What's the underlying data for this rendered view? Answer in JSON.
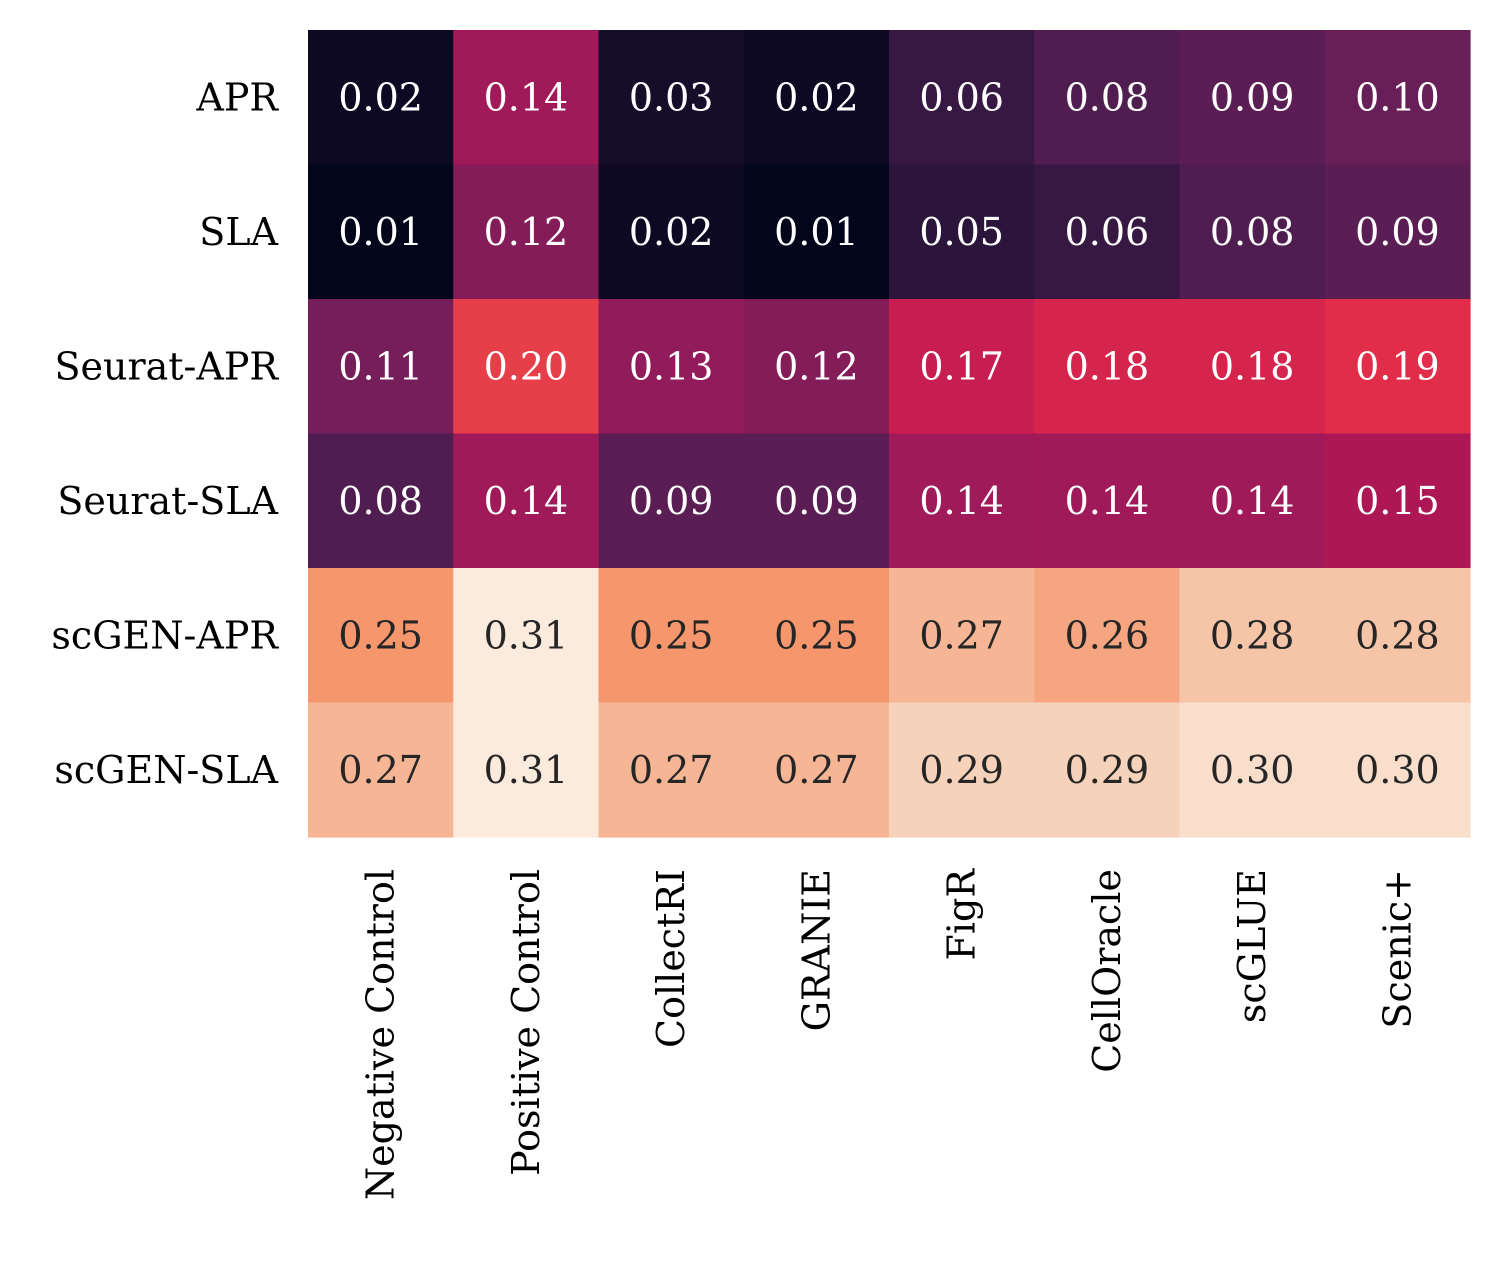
{
  "chart_data": {
    "type": "heatmap",
    "title": "",
    "xlabel": "",
    "ylabel": "",
    "rows": [
      "APR",
      "SLA",
      "Seurat-APR",
      "Seurat-SLA",
      "scGEN-APR",
      "scGEN-SLA"
    ],
    "columns": [
      "Negative Control",
      "Positive Control",
      "CollectRI",
      "GRANIE",
      "FigR",
      "CellOracle",
      "scGLUE",
      "Scenic+"
    ],
    "values": [
      [
        0.02,
        0.14,
        0.03,
        0.02,
        0.06,
        0.08,
        0.09,
        0.1
      ],
      [
        0.01,
        0.12,
        0.02,
        0.01,
        0.05,
        0.06,
        0.08,
        0.09
      ],
      [
        0.11,
        0.2,
        0.13,
        0.12,
        0.17,
        0.18,
        0.18,
        0.19
      ],
      [
        0.08,
        0.14,
        0.09,
        0.09,
        0.14,
        0.14,
        0.14,
        0.15
      ],
      [
        0.25,
        0.31,
        0.25,
        0.25,
        0.27,
        0.26,
        0.28,
        0.28
      ],
      [
        0.27,
        0.31,
        0.27,
        0.27,
        0.29,
        0.29,
        0.3,
        0.3
      ]
    ],
    "colormap": "rocket",
    "color_range": [
      0.01,
      0.31
    ],
    "colorbar": false,
    "annotation_format": "2 decimals",
    "annotation_dark_text_color": "#262626",
    "annotation_light_text_color": "#ffffff"
  }
}
